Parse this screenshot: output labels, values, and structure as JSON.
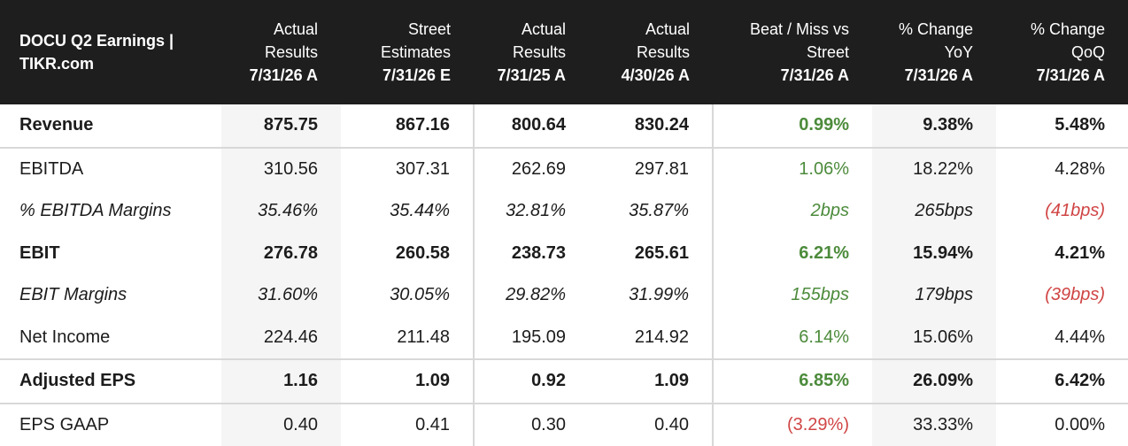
{
  "header": {
    "title": "DOCU Q2 Earnings | TIKR.com",
    "columns": [
      {
        "label": "Actual Results",
        "date": "7/31/26 A"
      },
      {
        "label": "Street Estimates",
        "date": "7/31/26 E"
      },
      {
        "label": "Actual Results",
        "date": "7/31/25 A"
      },
      {
        "label": "Actual Results",
        "date": "4/30/26 A"
      },
      {
        "label": "Beat / Miss vs Street",
        "date": "7/31/26 A"
      },
      {
        "label": "% Change YoY",
        "date": "7/31/26 A"
      },
      {
        "label": "% Change QoQ",
        "date": "7/31/26 A"
      }
    ]
  },
  "table": {
    "rows": [
      {
        "label": "Revenue",
        "style": "bold",
        "cells": [
          "875.75",
          "867.16",
          "800.64",
          "830.24",
          "0.99%",
          "9.38%",
          "5.48%"
        ]
      },
      {
        "label": "EBITDA",
        "style": "normal",
        "cells": [
          "310.56",
          "307.31",
          "262.69",
          "297.81",
          "1.06%",
          "18.22%",
          "4.28%"
        ]
      },
      {
        "label": "% EBITDA Margins",
        "style": "italic",
        "cells": [
          "35.46%",
          "35.44%",
          "32.81%",
          "35.87%",
          "2bps",
          "265bps",
          "(41bps)"
        ]
      },
      {
        "label": "EBIT",
        "style": "bold",
        "cells": [
          "276.78",
          "260.58",
          "238.73",
          "265.61",
          "6.21%",
          "15.94%",
          "4.21%"
        ]
      },
      {
        "label": "EBIT Margins",
        "style": "italic",
        "cells": [
          "31.60%",
          "30.05%",
          "29.82%",
          "31.99%",
          "155bps",
          "179bps",
          "(39bps)"
        ]
      },
      {
        "label": "Net Income",
        "style": "normal",
        "cells": [
          "224.46",
          "211.48",
          "195.09",
          "214.92",
          "6.14%",
          "15.06%",
          "4.44%"
        ]
      },
      {
        "label": "Adjusted EPS",
        "style": "bold",
        "cells": [
          "1.16",
          "1.09",
          "0.92",
          "1.09",
          "6.85%",
          "26.09%",
          "6.42%"
        ]
      },
      {
        "label": "EPS GAAP",
        "style": "normal",
        "cells": [
          "0.40",
          "0.41",
          "0.30",
          "0.40",
          "(3.29%)",
          "33.33%",
          "0.00%"
        ]
      }
    ]
  }
}
